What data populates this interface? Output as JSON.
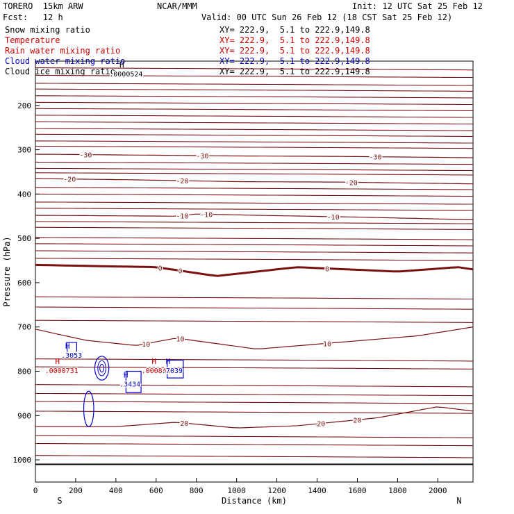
{
  "header": {
    "model": "TORERO  15km ARW",
    "center": "NCAR/MMM",
    "init": "Init: 12 UTC Sat 25 Feb 12",
    "fcst": "Fcst:   12 h",
    "valid": "Valid: 00 UTC Sun 26 Feb 12 (18 CST Sat 25 Feb 12)"
  },
  "fields": [
    {
      "name": "Snow mixing ratio",
      "xy": "XY= 222.9,  5.1 to 222.9,149.8",
      "color": "#000000"
    },
    {
      "name": "Temperature",
      "xy": "XY= 222.9,  5.1 to 222.9,149.8",
      "color": "#cc0000"
    },
    {
      "name": "Rain water mixing ratio",
      "xy": "XY= 222.9,  5.1 to 222.9,149.8",
      "color": "#cc0000"
    },
    {
      "name": "Cloud water mixing ratio",
      "xy": "XY= 222.9,  5.1 to 222.9,149.8",
      "color": "#0000c8"
    },
    {
      "name": "Cloud ice mixing ratio",
      "xy": "XY= 222.9,  5.1 to 222.9,149.8",
      "color": "#000000"
    }
  ],
  "chart_data": {
    "type": "line",
    "xlabel": "Distance (km)",
    "ylabel": "Pressure (hPa)",
    "xlim": [
      0,
      2175
    ],
    "ylim": [
      1050,
      100
    ],
    "x_ticks": [
      0,
      200,
      400,
      600,
      800,
      1000,
      1200,
      1400,
      1600,
      1800,
      2000
    ],
    "y_ticks": [
      200,
      300,
      400,
      500,
      600,
      700,
      800,
      900,
      1000
    ],
    "end_labels": {
      "left": "S",
      "right": "N"
    },
    "temperature_contours": [
      {
        "label": "-30",
        "points": [
          [
            0,
            310
          ],
          [
            500,
            312
          ],
          [
            1000,
            314
          ],
          [
            1500,
            315
          ],
          [
            2175,
            318
          ]
        ],
        "label_x": [
          250,
          830,
          1690
        ]
      },
      {
        "label": "-20",
        "points": [
          [
            0,
            365
          ],
          [
            500,
            368
          ],
          [
            1000,
            372
          ],
          [
            1500,
            373
          ],
          [
            2175,
            377
          ]
        ],
        "label_x": [
          170,
          730,
          1570
        ]
      },
      {
        "label": "-10",
        "points": [
          [
            0,
            448
          ],
          [
            700,
            450
          ],
          [
            800,
            445
          ],
          [
            1100,
            448
          ],
          [
            1600,
            452
          ],
          [
            2175,
            458
          ]
        ],
        "label_x": [
          730,
          850,
          1480
        ]
      },
      {
        "label": "0",
        "points": [
          [
            0,
            560
          ],
          [
            600,
            565
          ],
          [
            900,
            585
          ],
          [
            1100,
            575
          ],
          [
            1300,
            565
          ],
          [
            1800,
            575
          ],
          [
            2100,
            565
          ],
          [
            2175,
            570
          ]
        ],
        "label_x": [
          620,
          720,
          1450
        ]
      },
      {
        "label": "10",
        "points": [
          [
            0,
            705
          ],
          [
            250,
            730
          ],
          [
            500,
            742
          ],
          [
            700,
            725
          ],
          [
            1100,
            750
          ],
          [
            1500,
            735
          ],
          [
            1900,
            720
          ],
          [
            2175,
            700
          ]
        ],
        "label_x": [
          550,
          720,
          1450
        ]
      },
      {
        "label": "20",
        "points": [
          [
            0,
            925
          ],
          [
            400,
            925
          ],
          [
            700,
            915
          ],
          [
            1000,
            928
          ],
          [
            1300,
            923
          ],
          [
            1700,
            905
          ],
          [
            2000,
            880
          ],
          [
            2175,
            890
          ]
        ],
        "label_x": [
          740,
          1420,
          1600
        ]
      }
    ],
    "unlabeled_isotherm_pressures": [
      115,
      132,
      150,
      163,
      178,
      193,
      207,
      222,
      237,
      252,
      265,
      280,
      292,
      328,
      342,
      352,
      385,
      400,
      418,
      432,
      462,
      475,
      498,
      512,
      528,
      545,
      632,
      655,
      685,
      772,
      790,
      830,
      850,
      868,
      890,
      945,
      963,
      990
    ],
    "surface_pressure": 1010,
    "maxima": [
      {
        "field": "Snow mixing ratio",
        "label": "H",
        "value": ".0000524",
        "x": 450,
        "p": 120
      },
      {
        "field": "Cloud water mixing ratio",
        "label": "H",
        "value": ".3053",
        "x": 180,
        "p": 755
      },
      {
        "field": "Rain water mixing ratio",
        "label": "H",
        "value": ".0000731",
        "x": 130,
        "p": 790
      },
      {
        "field": "Cloud water mixing ratio",
        "label": "H",
        "value": ".3434",
        "x": 470,
        "p": 820
      },
      {
        "field": "Rain water mixing ratio",
        "label": "H",
        "value": ".0008439",
        "x": 610,
        "p": 790
      },
      {
        "field": "Cloud water mixing ratio",
        "label": "H",
        "value": ".7039",
        "x": 680,
        "p": 790
      }
    ]
  }
}
